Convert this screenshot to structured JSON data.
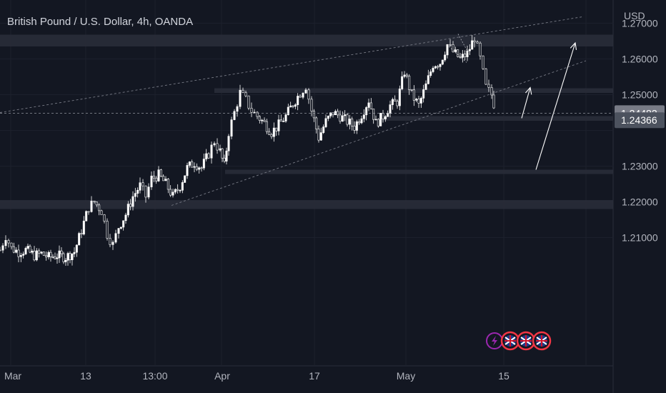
{
  "header": {
    "title": "British Pound / U.S. Dollar, 4h, OANDA",
    "currency": "USD"
  },
  "colors": {
    "background": "#131722",
    "zone": "#2a2e39",
    "candle": "#ffffff",
    "axis_text": "#b2b5be",
    "last_price_bg": "#787b86",
    "ref_price_bg": "#4c525e"
  },
  "icons": [
    "flash-icon",
    "uk-us-flag-icon",
    "uk-us-flag-icon",
    "uk-us-flag-icon"
  ],
  "chart_data": {
    "type": "candlestick",
    "title": "British Pound / U.S. Dollar, 4h, OANDA",
    "ylabel": "USD",
    "ylim": [
      1.2025,
      1.2745
    ],
    "y_ticks": [
      "1.27000",
      "1.26000",
      "1.25000",
      "1.23000",
      "1.22000",
      "1.21000"
    ],
    "x_ticks": [
      "Mar",
      "13",
      "13:00",
      "Apr",
      "17",
      "May",
      "15"
    ],
    "price_labels": [
      {
        "value": 1.24482,
        "label": "1.24482",
        "role": "last"
      },
      {
        "value": 1.24366,
        "label": "1.24366",
        "role": "reference"
      }
    ],
    "zones": [
      {
        "from": 1.2635,
        "to": 1.2668
      },
      {
        "from": 1.2505,
        "to": 1.2518
      },
      {
        "from": 1.2427,
        "to": 1.244
      },
      {
        "from": 1.2278,
        "to": 1.229
      },
      {
        "from": 1.218,
        "to": 1.2205
      }
    ],
    "close_path": [
      [
        0,
        1.2065
      ],
      [
        8,
        1.2105
      ],
      [
        16,
        1.207
      ],
      [
        26,
        1.206
      ],
      [
        36,
        1.2065
      ],
      [
        48,
        1.205
      ],
      [
        58,
        1.2055
      ],
      [
        68,
        1.2045
      ],
      [
        80,
        1.205
      ],
      [
        92,
        1.2045
      ],
      [
        104,
        1.206
      ],
      [
        114,
        1.212
      ],
      [
        124,
        1.2185
      ],
      [
        132,
        1.22
      ],
      [
        142,
        1.2175
      ],
      [
        150,
        1.211
      ],
      [
        158,
        1.208
      ],
      [
        166,
        1.213
      ],
      [
        176,
        1.2165
      ],
      [
        186,
        1.2215
      ],
      [
        196,
        1.2245
      ],
      [
        204,
        1.2215
      ],
      [
        212,
        1.2265
      ],
      [
        222,
        1.2275
      ],
      [
        232,
        1.225
      ],
      [
        242,
        1.2215
      ],
      [
        252,
        1.2245
      ],
      [
        262,
        1.2295
      ],
      [
        272,
        1.231
      ],
      [
        282,
        1.2295
      ],
      [
        292,
        1.2335
      ],
      [
        300,
        1.237
      ],
      [
        308,
        1.234
      ],
      [
        314,
        1.23
      ],
      [
        320,
        1.2395
      ],
      [
        328,
        1.245
      ],
      [
        336,
        1.2505
      ],
      [
        344,
        1.2485
      ],
      [
        352,
        1.2455
      ],
      [
        360,
        1.244
      ],
      [
        370,
        1.242
      ],
      [
        380,
        1.2395
      ],
      [
        390,
        1.2415
      ],
      [
        400,
        1.244
      ],
      [
        410,
        1.2475
      ],
      [
        420,
        1.2505
      ],
      [
        428,
        1.2525
      ],
      [
        436,
        1.2455
      ],
      [
        446,
        1.238
      ],
      [
        456,
        1.2425
      ],
      [
        466,
        1.245
      ],
      [
        476,
        1.244
      ],
      [
        486,
        1.2425
      ],
      [
        496,
        1.241
      ],
      [
        506,
        1.2445
      ],
      [
        516,
        1.2485
      ],
      [
        526,
        1.242
      ],
      [
        536,
        1.244
      ],
      [
        546,
        1.247
      ],
      [
        556,
        1.248
      ],
      [
        566,
        1.2565
      ],
      [
        576,
        1.25
      ],
      [
        586,
        1.247
      ],
      [
        596,
        1.2525
      ],
      [
        606,
        1.2585
      ],
      [
        616,
        1.259
      ],
      [
        626,
        1.264
      ],
      [
        634,
        1.262
      ],
      [
        644,
        1.26
      ],
      [
        654,
        1.2615
      ],
      [
        664,
        1.266
      ],
      [
        672,
        1.26
      ],
      [
        680,
        1.252
      ],
      [
        688,
        1.25
      ],
      [
        694,
        1.245
      ]
    ],
    "trendlines": [
      {
        "style": "dashed",
        "from": [
          0,
          1.245
        ],
        "to": [
          815,
          1.2718
        ]
      },
      {
        "style": "dashed",
        "from": [
          240,
          1.219
        ],
        "to": [
          820,
          1.2595
        ]
      }
    ],
    "arrows": [
      {
        "from": [
          730,
          1.2434
        ],
        "to": [
          742,
          1.252
        ]
      },
      {
        "from": [
          750,
          1.229
        ],
        "to": [
          805,
          1.2645
        ]
      }
    ]
  }
}
